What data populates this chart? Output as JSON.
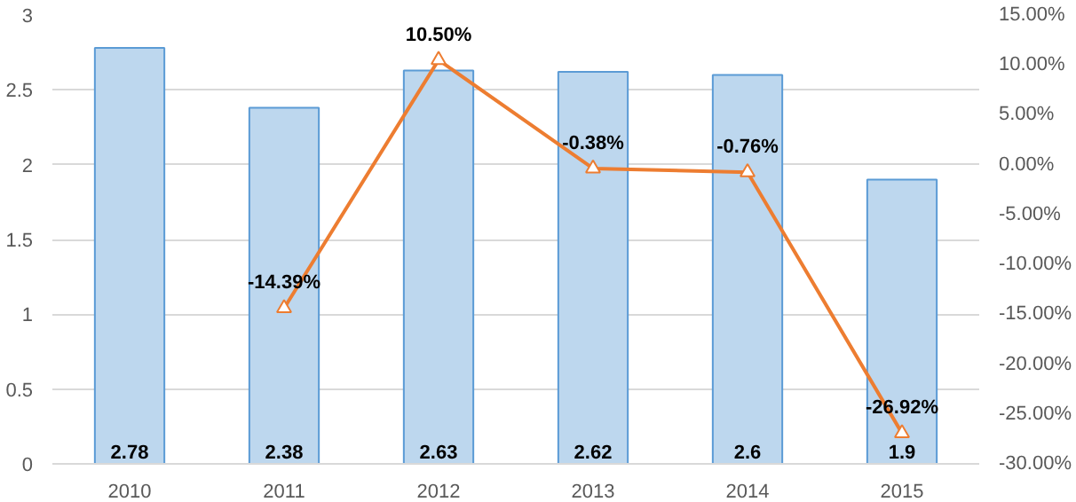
{
  "chart_data": {
    "type": "bar",
    "categories": [
      "2010",
      "2011",
      "2012",
      "2013",
      "2014",
      "2015"
    ],
    "series": [
      {
        "color": "#bdd7ee",
        "values": [
          2.78,
          2.38,
          2.63,
          2.62,
          2.6,
          1.9
        ],
        "value_labels": [
          "2.78",
          "2.38",
          "2.63",
          "2.62",
          "2.6",
          "1.9"
        ]
      },
      {
        "type": "line",
        "axis": "y2",
        "color": "#ed7d31",
        "marker": "triangle",
        "values": [
          null,
          -14.39,
          10.5,
          -0.38,
          -0.76,
          -26.92
        ],
        "value_labels": [
          null,
          "-14.39%",
          "10.50%",
          "-0.38%",
          "-0.76%",
          "-26.92%"
        ]
      }
    ],
    "ylim": [
      0,
      3
    ],
    "yticks": [
      0,
      0.5,
      1,
      1.5,
      2,
      2.5,
      3
    ],
    "y2lim": [
      -30,
      15
    ],
    "y2ticks": [
      {
        "value": -30,
        "label": "-30.00%"
      },
      {
        "value": -25,
        "label": "-25.00%"
      },
      {
        "value": -20,
        "label": "-20.00%"
      },
      {
        "value": -15,
        "label": "-15.00%"
      },
      {
        "value": -10,
        "label": "-10.00%"
      },
      {
        "value": -5,
        "label": "-5.00%"
      },
      {
        "value": 0,
        "label": "0.00%"
      },
      {
        "value": 5,
        "label": "5.00%"
      },
      {
        "value": 10,
        "label": "10.00%"
      },
      {
        "value": 15,
        "label": "15.00%"
      }
    ],
    "grid": "y"
  }
}
